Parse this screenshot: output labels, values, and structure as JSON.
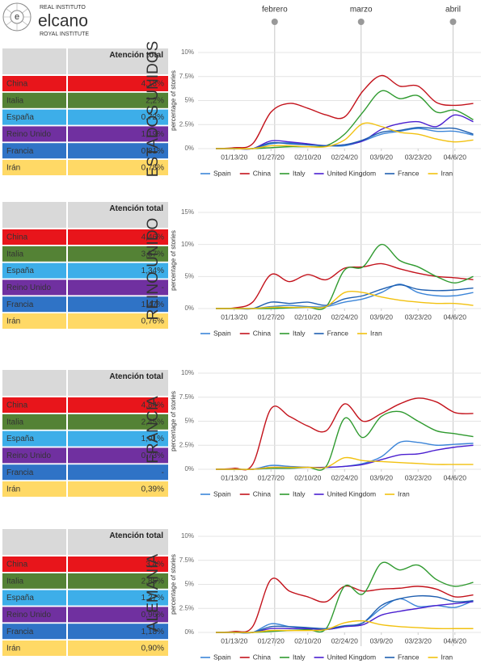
{
  "logo": {
    "top": "REAL INSTITUTO",
    "name": "elcano",
    "bottom": "ROYAL INSTITUTE"
  },
  "months": [
    "febrero",
    "marzo",
    "abril"
  ],
  "tables": [
    {
      "header": "Atención total",
      "rows": [
        [
          "China",
          "4,13%"
        ],
        [
          "Italia",
          "2,2%"
        ],
        [
          "España",
          "0,72%"
        ],
        [
          "Reino Unido",
          "1,19%"
        ],
        [
          "Francia",
          "0,81%"
        ],
        [
          "Irán",
          "0,78%"
        ]
      ]
    },
    {
      "header": "Atención total",
      "rows": [
        [
          "China",
          "4,46%"
        ],
        [
          "Italia",
          "3,57%"
        ],
        [
          "España",
          "1,34%"
        ],
        [
          "Reino Unido",
          "-"
        ],
        [
          "Francia",
          "1,47%"
        ],
        [
          "Irán",
          "0,76%"
        ]
      ]
    },
    {
      "header": "Atención total",
      "rows": [
        [
          "China",
          "4,84%"
        ],
        [
          "Italia",
          "2,45%"
        ],
        [
          "España",
          "1,01%"
        ],
        [
          "Reino Unido",
          "0,73%"
        ],
        [
          "Francia",
          "-"
        ],
        [
          "Irán",
          "0,39%"
        ]
      ]
    },
    {
      "header": "Atención total",
      "rows": [
        [
          "China",
          "3,4%"
        ],
        [
          "Italia",
          "2,85%"
        ],
        [
          "España",
          "1,27%"
        ],
        [
          "Reino Unido",
          "0,96%"
        ],
        [
          "Francia",
          "1,18%"
        ],
        [
          "Irán",
          "0,90%"
        ]
      ]
    }
  ],
  "chart_data": [
    {
      "type": "line",
      "title": "ESTADOS UNIDOS",
      "y_label": "percentage of stories",
      "categories": [
        null,
        "01/13/20",
        null,
        "01/27/20",
        null,
        "02/10/20",
        null,
        "02/24/20",
        null,
        "03/9/20",
        null,
        "03/23/20",
        null,
        "04/6/20",
        null
      ],
      "ylim": [
        0,
        10
      ],
      "yticks": [
        {
          "value": 0,
          "label": "0%"
        },
        {
          "value": 2.5,
          "label": "2.5%"
        },
        {
          "value": 5,
          "label": "5%"
        },
        {
          "value": 7.5,
          "label": "7.5%"
        },
        {
          "value": 10,
          "label": "10%"
        }
      ],
      "grid": true,
      "series": [
        {
          "name": "Spain",
          "color": "#3c85d8",
          "values": [
            0,
            0,
            0,
            0.5,
            0.6,
            0.4,
            0.3,
            0.3,
            0.8,
            1.5,
            1.8,
            2.1,
            1.8,
            1.8,
            1.4
          ]
        },
        {
          "name": "China",
          "color": "#c3121b",
          "values": [
            0,
            0.1,
            0.5,
            3.8,
            4.7,
            4.2,
            3.5,
            3.3,
            6.0,
            7.6,
            6.5,
            6.5,
            4.8,
            4.5,
            4.7
          ]
        },
        {
          "name": "Italy",
          "color": "#2f9a2f",
          "values": [
            0,
            0,
            0,
            0.1,
            0.2,
            0.2,
            0.3,
            1.5,
            3.8,
            6.0,
            5.2,
            5.5,
            3.8,
            4.0,
            3.0
          ]
        },
        {
          "name": "United Kingdom",
          "color": "#4a1fd0",
          "values": [
            0,
            0,
            0,
            0.8,
            0.7,
            0.5,
            0.3,
            0.4,
            0.8,
            2.0,
            2.6,
            2.8,
            2.3,
            3.5,
            2.8
          ]
        },
        {
          "name": "France",
          "color": "#1f5fb0",
          "values": [
            0,
            0,
            0,
            0.6,
            0.5,
            0.4,
            0.3,
            0.4,
            0.9,
            1.7,
            1.9,
            2.2,
            2.1,
            2.1,
            1.5
          ]
        },
        {
          "name": "Iran",
          "color": "#f2c10f",
          "values": [
            0,
            0,
            0,
            0.3,
            0.3,
            0.2,
            0.2,
            0.9,
            2.6,
            2.3,
            1.7,
            1.5,
            1.0,
            0.7,
            0.9
          ]
        }
      ]
    },
    {
      "type": "line",
      "title": "REINO UNIDO",
      "y_label": "percentage of stories",
      "categories": [
        null,
        "01/13/20",
        null,
        "01/27/20",
        null,
        "02/10/20",
        null,
        "02/24/20",
        null,
        "03/9/20",
        null,
        "03/23/20",
        null,
        "04/6/20",
        null
      ],
      "ylim": [
        0,
        15
      ],
      "yticks": [
        {
          "value": 0,
          "label": "0%"
        },
        {
          "value": 5,
          "label": "5%"
        },
        {
          "value": 10,
          "label": "10%"
        },
        {
          "value": 15,
          "label": "15%"
        }
      ],
      "grid": true,
      "series": [
        {
          "name": "Spain",
          "color": "#3c85d8",
          "values": [
            0,
            0,
            0,
            0.3,
            0.5,
            0.3,
            0.3,
            1.0,
            1.5,
            2.5,
            3.8,
            2.5,
            2.0,
            2.0,
            2.5
          ]
        },
        {
          "name": "China",
          "color": "#c3121b",
          "values": [
            0,
            0.1,
            1.0,
            5.3,
            4.2,
            5.3,
            4.5,
            6.3,
            6.5,
            7.0,
            6.2,
            5.5,
            5.0,
            4.8,
            4.5
          ]
        },
        {
          "name": "Italy",
          "color": "#2f9a2f",
          "values": [
            0,
            0,
            0,
            0,
            0.1,
            0.2,
            0.3,
            6.0,
            6.5,
            10.0,
            7.5,
            6.5,
            5.0,
            4.0,
            5.0
          ]
        },
        {
          "name": "France",
          "color": "#1f5fb0",
          "values": [
            0,
            0,
            0,
            1.0,
            0.8,
            1.0,
            0.5,
            1.5,
            2.0,
            3.0,
            3.7,
            3.0,
            2.8,
            2.9,
            3.2
          ]
        },
        {
          "name": "Iran",
          "color": "#f2c10f",
          "values": [
            0,
            0,
            0,
            0.2,
            0.2,
            0.2,
            0.3,
            2.5,
            2.5,
            1.8,
            1.3,
            1.0,
            0.8,
            0.8,
            0.5
          ]
        }
      ]
    },
    {
      "type": "line",
      "title": "FRANCIA",
      "y_label": "percentage of stories",
      "categories": [
        null,
        "01/13/20",
        null,
        "01/27/20",
        null,
        "02/10/20",
        null,
        "02/24/20",
        null,
        "03/9/20",
        null,
        "03/23/20",
        null,
        "04/6/20",
        null
      ],
      "ylim": [
        0,
        10
      ],
      "yticks": [
        {
          "value": 0,
          "label": "0%"
        },
        {
          "value": 2.5,
          "label": "2.5%"
        },
        {
          "value": 5,
          "label": "5%"
        },
        {
          "value": 7.5,
          "label": "7.5%"
        },
        {
          "value": 10,
          "label": "10%"
        }
      ],
      "grid": true,
      "series": [
        {
          "name": "Spain",
          "color": "#3c85d8",
          "values": [
            0,
            0,
            0,
            0.4,
            0.3,
            0.2,
            0.2,
            0.3,
            0.6,
            1.3,
            2.8,
            2.8,
            2.5,
            2.6,
            2.7
          ]
        },
        {
          "name": "China",
          "color": "#c3121b",
          "values": [
            0,
            0.1,
            0.5,
            6.3,
            5.5,
            4.5,
            4.0,
            6.8,
            5.0,
            5.8,
            6.8,
            7.4,
            7.0,
            5.9,
            5.8
          ]
        },
        {
          "name": "Italy",
          "color": "#2f9a2f",
          "values": [
            0,
            0,
            0,
            0.1,
            0.1,
            0.2,
            0.3,
            5.3,
            3.3,
            5.5,
            6.0,
            5.0,
            4.0,
            3.7,
            3.4
          ]
        },
        {
          "name": "United Kingdom",
          "color": "#4a1fd0",
          "values": [
            0,
            0,
            0,
            0.2,
            0.2,
            0.2,
            0.2,
            0.3,
            0.5,
            1.0,
            1.5,
            1.6,
            2.0,
            2.3,
            2.5
          ]
        },
        {
          "name": "Iran",
          "color": "#f2c10f",
          "values": [
            0,
            0,
            0,
            0.2,
            0.2,
            0.2,
            0.2,
            1.2,
            0.9,
            0.8,
            0.7,
            0.6,
            0.5,
            0.5,
            0.5
          ]
        }
      ]
    },
    {
      "type": "line",
      "title": "ALEMANIA",
      "y_label": "percentage of stories",
      "categories": [
        null,
        "01/13/20",
        null,
        "01/27/20",
        null,
        "02/10/20",
        null,
        "02/24/20",
        null,
        "03/9/20",
        null,
        "03/23/20",
        null,
        "04/6/20",
        null
      ],
      "ylim": [
        0,
        10
      ],
      "yticks": [
        {
          "value": 0,
          "label": "0%"
        },
        {
          "value": 2.5,
          "label": "2.5%"
        },
        {
          "value": 5,
          "label": "5%"
        },
        {
          "value": 7.5,
          "label": "7.5%"
        },
        {
          "value": 10,
          "label": "10%"
        }
      ],
      "grid": true,
      "series": [
        {
          "name": "Spain",
          "color": "#3c85d8",
          "values": [
            0,
            0,
            0,
            0.9,
            0.6,
            0.4,
            0.3,
            0.6,
            1.0,
            2.5,
            3.5,
            2.7,
            2.8,
            2.6,
            3.3
          ]
        },
        {
          "name": "China",
          "color": "#c3121b",
          "values": [
            0,
            0.1,
            0.6,
            5.5,
            4.3,
            3.7,
            3.2,
            4.8,
            4.3,
            4.5,
            4.6,
            4.8,
            4.5,
            3.7,
            3.9
          ]
        },
        {
          "name": "Italy",
          "color": "#2f9a2f",
          "values": [
            0,
            0,
            0,
            0.1,
            0.2,
            0.3,
            0.4,
            4.8,
            4.0,
            7.2,
            6.5,
            7.0,
            5.5,
            4.8,
            5.2
          ]
        },
        {
          "name": "United Kingdom",
          "color": "#4a1fd0",
          "values": [
            0,
            0,
            0,
            0.4,
            0.4,
            0.4,
            0.3,
            0.6,
            0.8,
            1.8,
            2.2,
            2.5,
            2.8,
            3.0,
            3.2
          ]
        },
        {
          "name": "France",
          "color": "#1f5fb0",
          "values": [
            0,
            0,
            0,
            0.6,
            0.6,
            0.5,
            0.4,
            0.7,
            1.0,
            2.8,
            3.5,
            3.8,
            3.7,
            3.2,
            3.3
          ]
        },
        {
          "name": "Iran",
          "color": "#f2c10f",
          "values": [
            0,
            0,
            0,
            0.2,
            0.2,
            0.2,
            0.3,
            1.0,
            1.2,
            0.8,
            0.6,
            0.5,
            0.4,
            0.4,
            0.4
          ]
        }
      ]
    }
  ]
}
